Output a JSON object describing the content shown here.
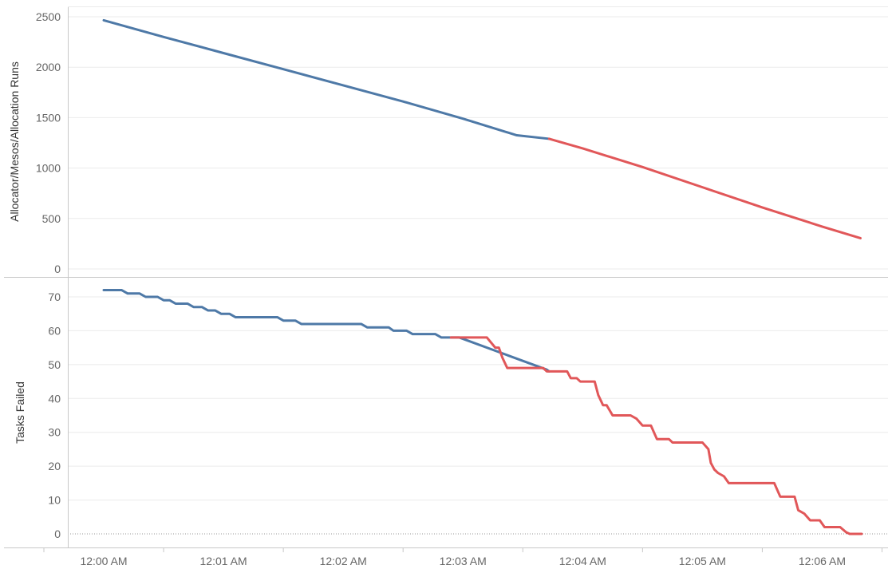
{
  "colors": {
    "series_a": "#4e79a7",
    "series_b": "#e15759",
    "grid": "#ebebeb",
    "axis": "#c8c8c8"
  },
  "chart_data": [
    {
      "type": "line",
      "ylabel": "Allocator/Mesos/Allocation Runs",
      "ylim": [
        0,
        2500
      ],
      "yticks": [
        0,
        500,
        1000,
        1500,
        2000,
        2500
      ],
      "xlim": [
        -0.3,
        6.55
      ],
      "grid": true,
      "series": [
        {
          "color": "#4e79a7",
          "points": [
            [
              0.0,
              2465
            ],
            [
              0.5,
              2300
            ],
            [
              1.0,
              2140
            ],
            [
              1.5,
              1980
            ],
            [
              2.0,
              1820
            ],
            [
              2.5,
              1660
            ],
            [
              3.0,
              1490
            ],
            [
              3.45,
              1325
            ],
            [
              3.72,
              1290
            ]
          ]
        },
        {
          "color": "#e15759",
          "points": [
            [
              3.72,
              1290
            ],
            [
              4.0,
              1195
            ],
            [
              4.5,
              1010
            ],
            [
              5.0,
              810
            ],
            [
              5.5,
              610
            ],
            [
              6.0,
              420
            ],
            [
              6.32,
              305
            ]
          ]
        }
      ]
    },
    {
      "type": "line",
      "ylabel": "Tasks Failed",
      "ylim": [
        0,
        75
      ],
      "yticks": [
        0,
        10,
        20,
        30,
        40,
        50,
        60,
        70
      ],
      "xlim": [
        -0.3,
        6.55
      ],
      "grid": true,
      "xticks": [
        "12:00 AM",
        "12:01 AM",
        "12:02 AM",
        "12:03 AM",
        "12:04 AM",
        "12:05 AM",
        "12:06 AM"
      ],
      "series": [
        {
          "color": "#4e79a7",
          "points": [
            [
              0.0,
              72
            ],
            [
              0.15,
              72
            ],
            [
              0.2,
              71
            ],
            [
              0.3,
              71
            ],
            [
              0.35,
              70
            ],
            [
              0.45,
              70
            ],
            [
              0.5,
              69
            ],
            [
              0.55,
              69
            ],
            [
              0.6,
              68
            ],
            [
              0.7,
              68
            ],
            [
              0.75,
              67
            ],
            [
              0.82,
              67
            ],
            [
              0.87,
              66
            ],
            [
              0.93,
              66
            ],
            [
              0.98,
              65
            ],
            [
              1.05,
              65
            ],
            [
              1.1,
              64
            ],
            [
              1.45,
              64
            ],
            [
              1.5,
              63
            ],
            [
              1.6,
              63
            ],
            [
              1.65,
              62
            ],
            [
              2.15,
              62
            ],
            [
              2.2,
              61
            ],
            [
              2.38,
              61
            ],
            [
              2.42,
              60
            ],
            [
              2.53,
              60
            ],
            [
              2.58,
              59
            ],
            [
              2.77,
              59
            ],
            [
              2.82,
              58
            ],
            [
              2.97,
              58
            ],
            [
              3.7,
              48.5
            ],
            [
              3.72,
              48
            ]
          ]
        },
        {
          "color": "#e15759",
          "points": [
            [
              2.9,
              58
            ],
            [
              3.2,
              58
            ],
            [
              3.27,
              55
            ],
            [
              3.3,
              55
            ],
            [
              3.33,
              52
            ],
            [
              3.37,
              49
            ],
            [
              3.67,
              49
            ],
            [
              3.7,
              48
            ],
            [
              3.87,
              48
            ],
            [
              3.9,
              46
            ],
            [
              3.95,
              46
            ],
            [
              3.98,
              45
            ],
            [
              4.1,
              45
            ],
            [
              4.13,
              41
            ],
            [
              4.17,
              38
            ],
            [
              4.2,
              38
            ],
            [
              4.25,
              35
            ],
            [
              4.4,
              35
            ],
            [
              4.45,
              34
            ],
            [
              4.5,
              32
            ],
            [
              4.57,
              32
            ],
            [
              4.62,
              28
            ],
            [
              4.72,
              28
            ],
            [
              4.75,
              27
            ],
            [
              5.0,
              27
            ],
            [
              5.05,
              25
            ],
            [
              5.07,
              21
            ],
            [
              5.1,
              19
            ],
            [
              5.13,
              18
            ],
            [
              5.18,
              17
            ],
            [
              5.22,
              15
            ],
            [
              5.6,
              15
            ],
            [
              5.65,
              11
            ],
            [
              5.77,
              11
            ],
            [
              5.8,
              7
            ],
            [
              5.85,
              6
            ],
            [
              5.9,
              4
            ],
            [
              5.98,
              4
            ],
            [
              6.02,
              2
            ],
            [
              6.15,
              2
            ],
            [
              6.2,
              0.5
            ],
            [
              6.23,
              0
            ],
            [
              6.33,
              0
            ]
          ]
        }
      ]
    }
  ]
}
